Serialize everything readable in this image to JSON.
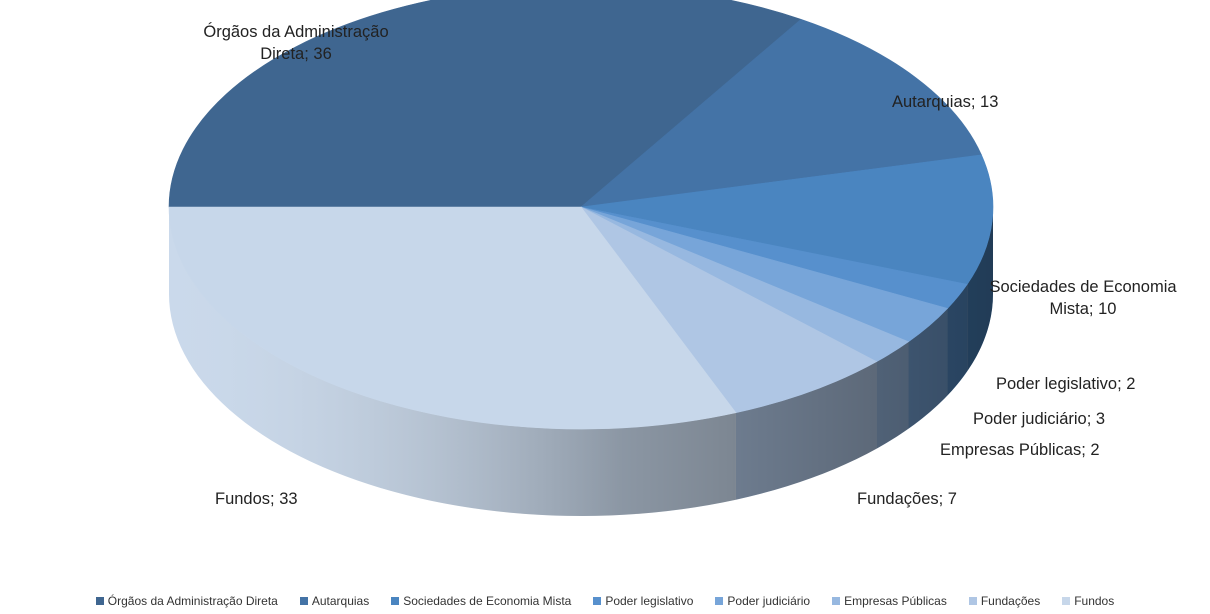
{
  "chart_data": {
    "type": "pie",
    "variant": "3d",
    "title": "",
    "slices": [
      {
        "name": "Órgãos da Administração Direta",
        "value": 36,
        "color": "#3f6690",
        "label_lines": [
          "Órgãos da Administração",
          "Direta; 36"
        ]
      },
      {
        "name": "Autarquias",
        "value": 13,
        "color": "#4473a6",
        "label_lines": [
          "Autarquias; 13"
        ]
      },
      {
        "name": "Sociedades de Economia Mista",
        "value": 10,
        "color": "#4a85c0",
        "label_lines": [
          "Sociedades de Economia",
          "Mista; 10"
        ]
      },
      {
        "name": "Poder legislativo",
        "value": 2,
        "color": "#5790cd",
        "label_lines": [
          "Poder legislativo; 2"
        ]
      },
      {
        "name": "Poder judiciário",
        "value": 3,
        "color": "#77a5d9",
        "label_lines": [
          "Poder judiciário; 3"
        ]
      },
      {
        "name": "Empresas Públicas",
        "value": 2,
        "color": "#97b8e0",
        "label_lines": [
          "Empresas Públicas; 2"
        ]
      },
      {
        "name": "Fundações",
        "value": 7,
        "color": "#afc6e4",
        "label_lines": [
          "Fundações; 7"
        ]
      },
      {
        "name": "Fundos",
        "value": 33,
        "color": "#c7d7ea",
        "label_lines": [
          "Fundos; 33"
        ]
      }
    ],
    "legend_position": "bottom"
  }
}
